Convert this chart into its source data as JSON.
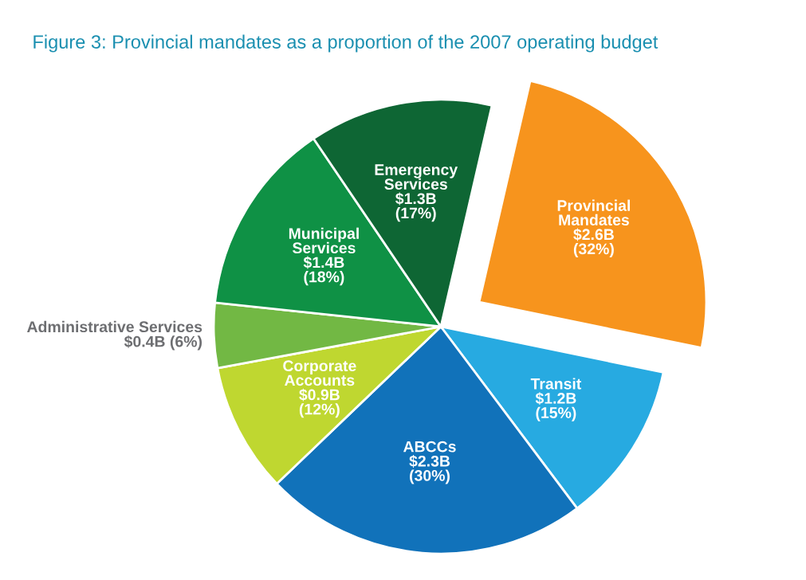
{
  "chart_data": {
    "type": "pie",
    "title": "Figure 3: Provincial mandates as a proportion of the 2007 operating budget",
    "categories": [
      "Provincial Mandates",
      "Transit",
      "ABCCs",
      "Corporate Accounts",
      "Administrative Services",
      "Municipal Services",
      "Emergency Services"
    ],
    "values": [
      32,
      15,
      30,
      12,
      6,
      18,
      17
    ],
    "value_labels": [
      "$2.6B (32%)",
      "$1.2B (15%)",
      "$2.3B (30%)",
      "$0.9B (12%)",
      "$0.4B (6%)",
      "$1.4B (18%)",
      "$1.3B (17%)"
    ],
    "colors": [
      "#f7941d",
      "#27aae1",
      "#1172ba",
      "#bfd730",
      "#72b844",
      "#0f9145",
      "#0e6634"
    ],
    "legend": false
  }
}
